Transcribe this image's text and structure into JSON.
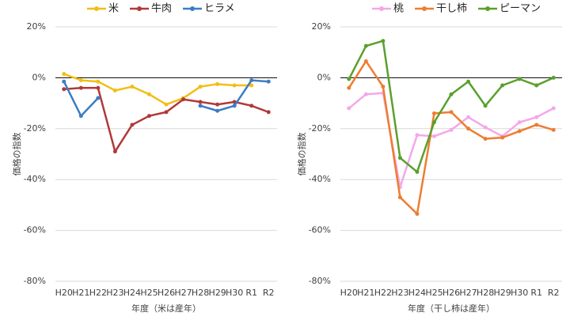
{
  "chart_data": [
    {
      "type": "line",
      "y_label": "価格の指数",
      "x_label": "年度（米は産年）",
      "categories": [
        "H20",
        "H21",
        "H22",
        "H23",
        "H24",
        "H25",
        "H26",
        "H27",
        "H28",
        "H29",
        "H30",
        "R1",
        "R2"
      ],
      "ylim": [
        -80,
        20
      ],
      "yticks": [
        {
          "value": 20,
          "label": "20%"
        },
        {
          "value": 0,
          "label": "0%"
        },
        {
          "value": -20,
          "label": "-20%"
        },
        {
          "value": -40,
          "label": "-40%"
        },
        {
          "value": -60,
          "label": "-60%"
        },
        {
          "value": -80,
          "label": "-80%"
        }
      ],
      "grid": true,
      "series": [
        {
          "name": "米",
          "color": "#f2be16",
          "values": [
            1.5,
            -1,
            -1.5,
            -5,
            -3.5,
            -6.5,
            -10.5,
            -8,
            -3.5,
            -2.5,
            -3,
            -3,
            null
          ]
        },
        {
          "name": "牛肉",
          "color": "#b0393a",
          "values": [
            -4.5,
            -4,
            -4,
            -29,
            -18.5,
            -15,
            -13.5,
            -8.5,
            -9.5,
            -10.5,
            -9.5,
            -11,
            -13.5
          ]
        },
        {
          "name": "ヒラメ",
          "color": "#3b7dc4",
          "values": [
            -1.5,
            -15,
            -8,
            null,
            null,
            null,
            null,
            null,
            -11,
            -13,
            -11,
            -1,
            -1.5
          ]
        }
      ]
    },
    {
      "type": "line",
      "y_label": "価格の指数",
      "x_label": "年度（干し柿は産年）",
      "categories": [
        "H20",
        "H21",
        "H22",
        "H23",
        "H24",
        "H25",
        "H26",
        "H27",
        "H28",
        "H29",
        "H30",
        "R1",
        "R2"
      ],
      "ylim": [
        -80,
        20
      ],
      "yticks": [
        {
          "value": 20,
          "label": "20%"
        },
        {
          "value": 0,
          "label": "0%"
        },
        {
          "value": -20,
          "label": "-20%"
        },
        {
          "value": -40,
          "label": "-40%"
        },
        {
          "value": -60,
          "label": "-60%"
        },
        {
          "value": -80,
          "label": "-80%"
        }
      ],
      "grid": true,
      "series": [
        {
          "name": "桃",
          "color": "#f5a7e8",
          "values": [
            -12,
            -6.5,
            -6,
            -43,
            -22.5,
            -23,
            -20.5,
            -15.5,
            -19.5,
            -23,
            -17.5,
            -15.5,
            -12
          ]
        },
        {
          "name": "干し柿",
          "color": "#ed7d31",
          "values": [
            -4,
            6.5,
            -3.5,
            -47,
            -53.5,
            -14,
            -13.5,
            -20,
            -24,
            -23.5,
            -21,
            -18.5,
            -20.5
          ]
        },
        {
          "name": "ピーマン",
          "color": "#5aa02c",
          "values": [
            -0.5,
            12.5,
            14.5,
            -31.5,
            -37,
            -17.5,
            -6.5,
            -1.5,
            -11,
            -3,
            -0.5,
            -3,
            0
          ]
        }
      ]
    }
  ]
}
